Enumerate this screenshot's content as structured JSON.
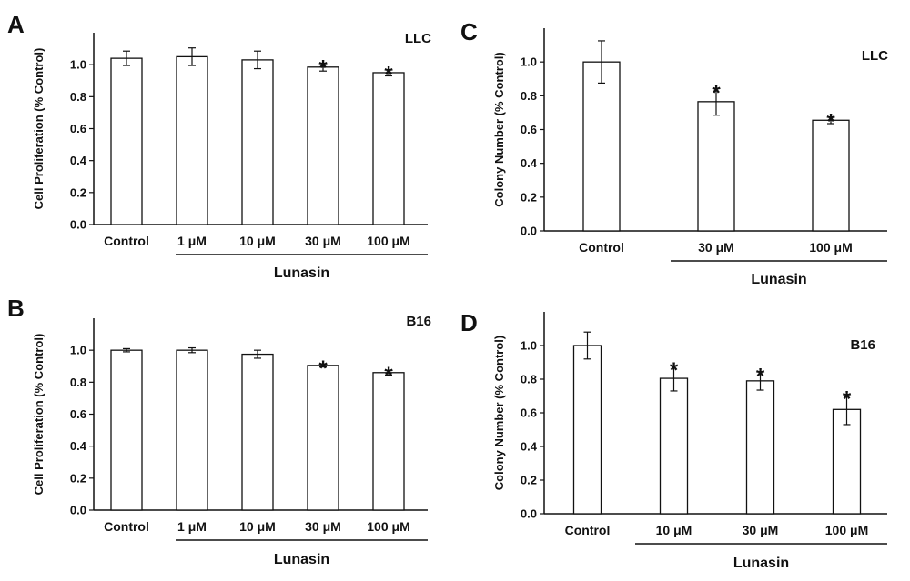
{
  "chart_data": [
    {
      "panel": "A",
      "type": "bar",
      "cell_line": "LLC",
      "ylabel": "Cell Proliferation (% Control)",
      "xlabel": "",
      "group_label": "Lunasin",
      "categories": [
        "Control",
        "1 μM",
        "10 μM",
        "30 μM",
        "100 μM"
      ],
      "values": [
        1.04,
        1.05,
        1.03,
        0.985,
        0.95
      ],
      "errors": [
        0.045,
        0.055,
        0.055,
        0.025,
        0.02
      ],
      "significant": [
        false,
        false,
        false,
        true,
        true
      ],
      "ylim": [
        0,
        1.2
      ],
      "yticks": [
        "0.0",
        "0.2",
        "0.4",
        "0.6",
        "0.8",
        "1.0"
      ],
      "grid": false
    },
    {
      "panel": "B",
      "type": "bar",
      "cell_line": "B16",
      "ylabel": "Cell Proliferation (% Control)",
      "xlabel": "",
      "group_label": "Lunasin",
      "categories": [
        "Control",
        "1 μM",
        "10 μM",
        "30 μM",
        "100 μM"
      ],
      "values": [
        1.0,
        1.0,
        0.975,
        0.905,
        0.86
      ],
      "errors": [
        0.01,
        0.015,
        0.025,
        0.01,
        0.015
      ],
      "significant": [
        false,
        false,
        false,
        true,
        true
      ],
      "ylim": [
        0,
        1.2
      ],
      "yticks": [
        "0.0",
        "0.2",
        "0.4",
        "0.6",
        "0.8",
        "1.0"
      ],
      "grid": false
    },
    {
      "panel": "C",
      "type": "bar",
      "cell_line": "LLC",
      "ylabel": "Colony Number (% Control)",
      "xlabel": "",
      "group_label": "Lunasin",
      "categories": [
        "Control",
        "30 μM",
        "100 μM"
      ],
      "values": [
        1.0,
        0.765,
        0.655
      ],
      "errors": [
        0.125,
        0.08,
        0.02
      ],
      "significant": [
        false,
        true,
        true
      ],
      "ylim": [
        0,
        1.2
      ],
      "yticks": [
        "0.0",
        "0.2",
        "0.4",
        "0.6",
        "0.8",
        "1.0"
      ],
      "grid": false
    },
    {
      "panel": "D",
      "type": "bar",
      "cell_line": "B16",
      "ylabel": "Colony Number (% Control)",
      "xlabel": "",
      "group_label": "Lunasin",
      "categories": [
        "Control",
        "10 μM",
        "30 μM",
        "100 μM"
      ],
      "values": [
        1.0,
        0.805,
        0.79,
        0.62
      ],
      "errors": [
        0.08,
        0.075,
        0.055,
        0.09
      ],
      "significant": [
        false,
        true,
        true,
        true
      ],
      "ylim": [
        0,
        1.2
      ],
      "yticks": [
        "0.0",
        "0.2",
        "0.4",
        "0.6",
        "0.8",
        "1.0"
      ],
      "grid": false
    }
  ],
  "labels": {
    "panel_a": "A",
    "panel_b": "B",
    "panel_c": "C",
    "panel_d": "D",
    "significance_mark": "*"
  },
  "colors": {
    "bar_fill": "#ffffff",
    "bar_stroke": "#111111",
    "axis": "#111111"
  }
}
